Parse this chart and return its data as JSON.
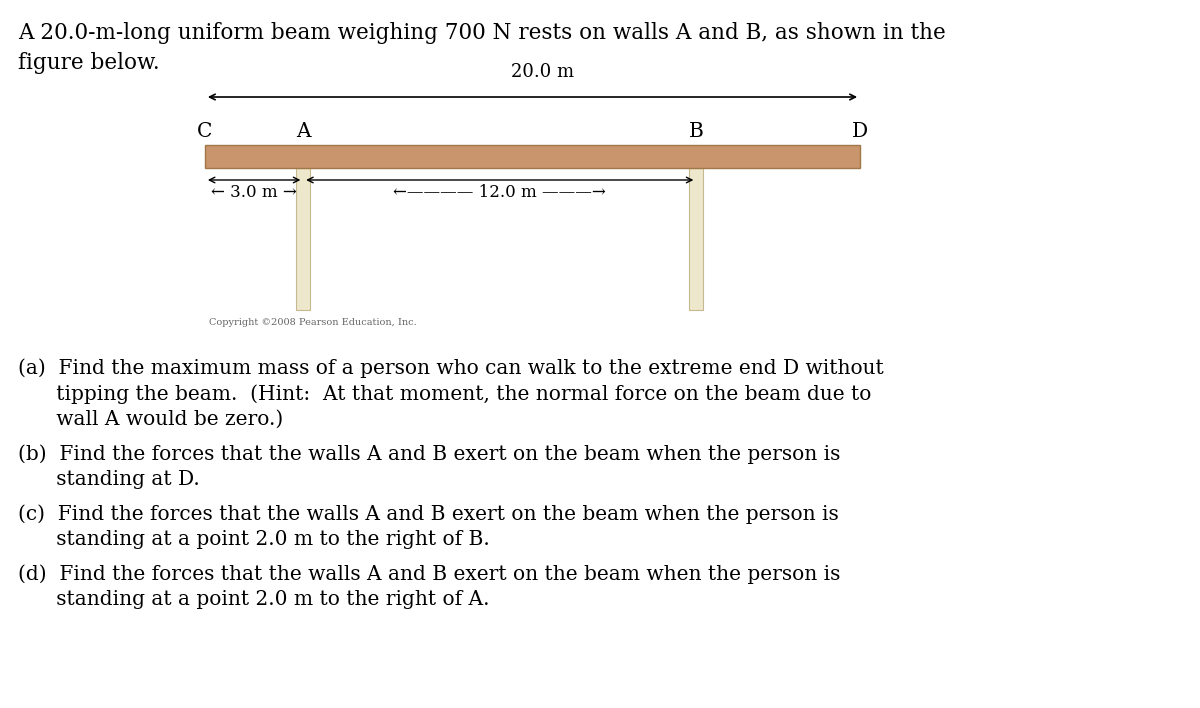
{
  "bg_color": "#ffffff",
  "fig_width": 12.0,
  "fig_height": 7.08,
  "beam_color": "#c8956c",
  "beam_outline": "#a07848",
  "wall_color": "#ede8cc",
  "wall_outline": "#c8b890",
  "copyright_text": "Copyright ©2008 Pearson Education, Inc.",
  "title_line1": "A 20.0-m-long uniform beam weighing 700 N rests on walls A and B, as shown in the",
  "title_line2": "figure below.",
  "label_C": "C",
  "label_A": "A",
  "label_B": "B",
  "label_D": "D",
  "dim_20m": "20.0 m",
  "dim_3m": "← 3.0 m →",
  "dim_12m": "←———— 12.0 m ———→",
  "part_a_line1": "(a)  Find the maximum mass of a person who can walk to the extreme end D without",
  "part_a_line2": "      tipping the beam.  (Hint:  At that moment, the normal force on the beam due to",
  "part_a_line3": "      wall A would be zero.)",
  "part_b_line1": "(b)  Find the forces that the walls A and B exert on the beam when the person is",
  "part_b_line2": "      standing at D.",
  "part_c_line1": "(c)  Find the forces that the walls A and B exert on the beam when the person is",
  "part_c_line2": "      standing at a point 2.0 m to the right of B.",
  "part_d_line1": "(d)  Find the forces that the walls A and B exert on the beam when the person is",
  "part_d_line2": "      standing at a point 2.0 m to the right of A."
}
